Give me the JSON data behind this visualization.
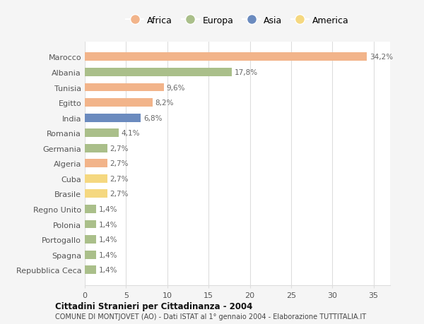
{
  "categories": [
    "Marocco",
    "Albania",
    "Tunisia",
    "Egitto",
    "India",
    "Romania",
    "Germania",
    "Algeria",
    "Cuba",
    "Brasile",
    "Regno Unito",
    "Polonia",
    "Portogallo",
    "Spagna",
    "Repubblica Ceca"
  ],
  "values": [
    34.2,
    17.8,
    9.6,
    8.2,
    6.8,
    4.1,
    2.7,
    2.7,
    2.7,
    2.7,
    1.4,
    1.4,
    1.4,
    1.4,
    1.4
  ],
  "labels": [
    "34,2%",
    "17,8%",
    "9,6%",
    "8,2%",
    "6,8%",
    "4,1%",
    "2,7%",
    "2,7%",
    "2,7%",
    "2,7%",
    "1,4%",
    "1,4%",
    "1,4%",
    "1,4%",
    "1,4%"
  ],
  "colors": [
    "#F2B48A",
    "#AABF8A",
    "#F2B48A",
    "#F2B48A",
    "#6B8BBF",
    "#AABF8A",
    "#AABF8A",
    "#F2B48A",
    "#F5D880",
    "#F5D880",
    "#AABF8A",
    "#AABF8A",
    "#AABF8A",
    "#AABF8A",
    "#AABF8A"
  ],
  "legend_labels": [
    "Africa",
    "Europa",
    "Asia",
    "America"
  ],
  "legend_colors": [
    "#F2B48A",
    "#AABF8A",
    "#6B8BBF",
    "#F5D880"
  ],
  "title1": "Cittadini Stranieri per Cittadinanza - 2004",
  "title2": "COMUNE DI MONTJOVET (AO) - Dati ISTAT al 1° gennaio 2004 - Elaborazione TUTTITALIA.IT",
  "xlim": [
    0,
    37
  ],
  "xticks": [
    0,
    5,
    10,
    15,
    20,
    25,
    30,
    35
  ],
  "background_color": "#f5f5f5",
  "bar_background": "#ffffff",
  "grid_color": "#dddddd",
  "label_color": "#666666",
  "ytick_color": "#555555"
}
